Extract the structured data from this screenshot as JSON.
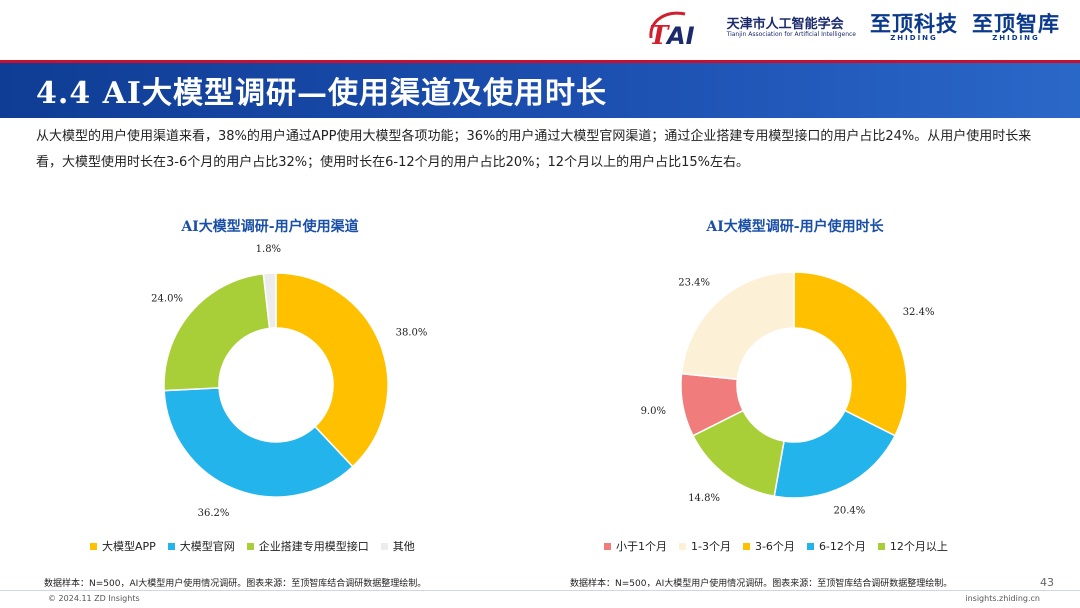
{
  "header": {
    "org_name": "天津市人工智能学会",
    "org_name_en": "Tianjin Association for Artificial Intelligence",
    "brand1": "至顶科技",
    "brand1_en": "ZHIDING",
    "brand2": "至顶智库",
    "brand2_en": "ZHIDING",
    "title": "4.4 AI大模型调研—使用渠道及使用时长"
  },
  "intro": "从大模型的用户使用渠道来看，38%的用户通过APP使用大模型各项功能；36%的用户通过大模型官网渠道；通过企业搭建专用模型接口的用户占比24%。从用户使用时长来看，大模型使用时长在3-6个月的用户占比32%；使用时长在6-12个月的用户占比20%；12个月以上的用户占比15%左右。",
  "colors": {
    "title_bar": "#1c4fb0",
    "chart_title": "#1a4fa8"
  },
  "chart_data": [
    {
      "type": "pie",
      "donut": true,
      "title": "AI大模型调研-用户使用渠道",
      "labels": [
        "大模型APP",
        "大模型官网",
        "企业搭建专用模型接口",
        "其他"
      ],
      "values": [
        38.0,
        36.2,
        24.0,
        1.8
      ],
      "value_labels": [
        "38.0%",
        "36.2%",
        "24.0%",
        "1.8%"
      ],
      "colors": [
        "#ffc000",
        "#22b4ea",
        "#a9cf38",
        "#ececec"
      ],
      "legend": "bottom",
      "note": "数据样本：N=500，AI大模型用户使用情况调研。图表来源：至顶智库结合调研数据整理绘制。"
    },
    {
      "type": "pie",
      "donut": true,
      "title": "AI大模型调研-用户使用时长",
      "labels": [
        "小于1个月",
        "1-3个月",
        "3-6个月",
        "6-12个月",
        "12个月以上"
      ],
      "values": [
        9.0,
        23.4,
        32.4,
        20.4,
        14.8
      ],
      "value_labels": [
        "9.0%",
        "23.4%",
        "32.4%",
        "20.4%",
        "14.8%"
      ],
      "colors": [
        "#f07c7c",
        "#fcf0d6",
        "#ffc000",
        "#22b4ea",
        "#a9cf38"
      ],
      "draw_order": [
        2,
        3,
        4,
        0,
        1
      ],
      "legend": "bottom",
      "note": "数据样本：N=500，AI大模型用户使用情况调研。图表来源：至顶智库结合调研数据整理绘制。"
    }
  ],
  "footer": {
    "copyright": "© 2024.11 ZD Insights",
    "site": "insights.zhiding.cn",
    "page": "43"
  }
}
